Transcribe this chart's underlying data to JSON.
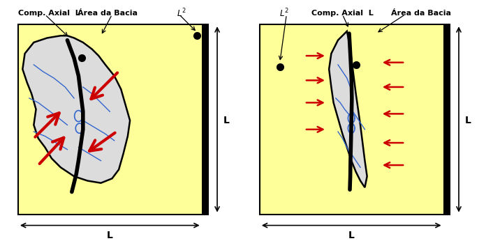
{
  "yellow_bg": "#FFFF99",
  "basin_color": "#DCDCDC",
  "river_color": "#3366CC",
  "arrow_color": "#CC0000",
  "black": "#000000",
  "white": "#FFFFFF",
  "label_comp_axial": "Comp. Axial  L",
  "label_area": "Área da Bacia",
  "label_L2": "$L^2$",
  "label_L": "L",
  "fig_width": 7.06,
  "fig_height": 3.46,
  "dpi": 100
}
